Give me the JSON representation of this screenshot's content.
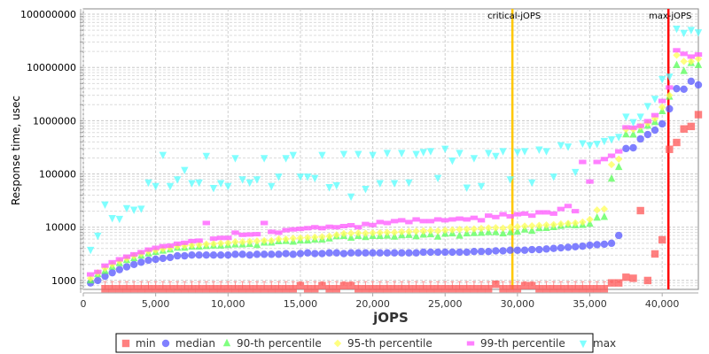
{
  "chart_data": {
    "type": "scatter",
    "title": "",
    "xlabel": "jOPS",
    "ylabel": "Response time, usec",
    "xlim": [
      0,
      42500
    ],
    "ylim": [
      680,
      126000000
    ],
    "yscale": "log",
    "grid": true,
    "legend_position": "bottom",
    "x_ticks": [
      "0",
      "5,000",
      "10,000",
      "15,000",
      "20,000",
      "25,000",
      "30,000",
      "35,000",
      "40,000"
    ],
    "x_tick_values": [
      0,
      5000,
      10000,
      15000,
      20000,
      25000,
      30000,
      35000,
      40000
    ],
    "y_ticks": [
      "1000",
      "10000",
      "100000",
      "1000000",
      "10000000",
      "100000000"
    ],
    "y_tick_values": [
      1000,
      10000,
      100000,
      1000000,
      10000000,
      100000000
    ],
    "annotations": [
      {
        "label": "critical-jOPS",
        "x": 29650,
        "color": "#ffc800"
      },
      {
        "label": "max-jOPS",
        "x": 40430,
        "color": "#ff0000"
      }
    ],
    "x_start": 500,
    "x_step": 500,
    "series": [
      {
        "name": "min",
        "marker": "square",
        "color": "#ff5555",
        "values": [
          null,
          null,
          700,
          700,
          700,
          700,
          700,
          700,
          700,
          700,
          700,
          700,
          700,
          700,
          700,
          700,
          700,
          700,
          700,
          700,
          700,
          700,
          700,
          700,
          700,
          700,
          700,
          700,
          700,
          800,
          700,
          700,
          800,
          700,
          700,
          800,
          800,
          700,
          700,
          700,
          700,
          700,
          700,
          700,
          700,
          700,
          700,
          700,
          700,
          700,
          700,
          700,
          700,
          700,
          700,
          700,
          850,
          700,
          700,
          700,
          800,
          800,
          700,
          700,
          700,
          700,
          700,
          700,
          700,
          700,
          700,
          700,
          900,
          900,
          1150,
          1100,
          20500,
          1000,
          3150,
          5800,
          290000,
          390000,
          700000,
          780000,
          1300000
        ]
      },
      {
        "name": "median",
        "marker": "circle",
        "color": "#5555ff",
        "values": [
          900,
          1000,
          1200,
          1400,
          1600,
          1800,
          2000,
          2200,
          2400,
          2500,
          2600,
          2700,
          2900,
          2900,
          3000,
          3000,
          3000,
          3000,
          3000,
          3000,
          3100,
          3100,
          3000,
          3100,
          3100,
          3100,
          3100,
          3200,
          3100,
          3200,
          3300,
          3200,
          3200,
          3300,
          3300,
          3200,
          3300,
          3300,
          3300,
          3300,
          3300,
          3300,
          3300,
          3300,
          3300,
          3300,
          3400,
          3400,
          3400,
          3400,
          3400,
          3400,
          3400,
          3500,
          3500,
          3500,
          3600,
          3600,
          3700,
          3700,
          3700,
          3800,
          3800,
          3900,
          4000,
          4100,
          4200,
          4300,
          4400,
          4600,
          4700,
          4800,
          5000,
          7000,
          300000,
          310000,
          455000,
          550000,
          665000,
          870000,
          1670000,
          4000000,
          3900000,
          5500000,
          4700000
        ]
      },
      {
        "name": "90-th percentile",
        "marker": "triangle-up",
        "color": "#55ff55",
        "values": [
          1000,
          1300,
          1500,
          1800,
          2100,
          2400,
          2600,
          2900,
          3200,
          3400,
          3600,
          3800,
          4100,
          4100,
          4300,
          4300,
          4400,
          4500,
          4500,
          4600,
          4700,
          4700,
          4800,
          4600,
          5100,
          5100,
          5400,
          5500,
          5300,
          5600,
          5600,
          5800,
          5800,
          6100,
          6700,
          6800,
          6300,
          6800,
          6500,
          6800,
          6800,
          6900,
          6600,
          7000,
          7100,
          6700,
          7200,
          7300,
          6600,
          7500,
          7600,
          6900,
          7600,
          7700,
          7800,
          8000,
          8000,
          7600,
          8000,
          8200,
          9000,
          8500,
          9500,
          9600,
          10000,
          10500,
          11000,
          10800,
          11000,
          11500,
          15000,
          15500,
          81000,
          134000,
          550000,
          545000,
          665000,
          800000,
          940000,
          1500000,
          2800000,
          11000000,
          8500000,
          12000000,
          11000000
        ]
      },
      {
        "name": "95-th percentile",
        "marker": "diamond",
        "color": "#ffff55",
        "values": [
          1100,
          1400,
          1700,
          2000,
          2300,
          2600,
          2900,
          3200,
          3500,
          3700,
          3900,
          4100,
          4400,
          4500,
          4600,
          4700,
          4800,
          4900,
          5000,
          5100,
          5300,
          5300,
          5400,
          5500,
          5600,
          5600,
          6000,
          6000,
          6200,
          6300,
          6400,
          6500,
          6600,
          6800,
          7200,
          7600,
          7700,
          7800,
          7700,
          7800,
          7900,
          8000,
          8000,
          8200,
          8300,
          8400,
          8500,
          8600,
          8500,
          8800,
          8900,
          9100,
          9200,
          9300,
          9500,
          9700,
          9800,
          9600,
          10000,
          10200,
          10500,
          10600,
          10800,
          11000,
          11200,
          11500,
          11800,
          12000,
          12500,
          14000,
          21000,
          22000,
          150000,
          190000,
          690000,
          690000,
          780000,
          900000,
          1100000,
          1800000,
          3000000,
          17000000,
          13000000,
          13000000,
          14500000
        ]
      },
      {
        "name": "99-th percentile",
        "marker": "rect",
        "color": "#ff55ff",
        "values": [
          1300,
          1450,
          1900,
          2200,
          2500,
          2800,
          3100,
          3400,
          3800,
          4100,
          4400,
          4500,
          4900,
          5100,
          5500,
          5600,
          12000,
          6100,
          6300,
          6300,
          7900,
          7200,
          7300,
          7400,
          12000,
          8200,
          7900,
          8800,
          9100,
          9300,
          9600,
          10000,
          9600,
          10200,
          10000,
          10500,
          10900,
          10000,
          11500,
          11000,
          12500,
          12000,
          13000,
          13500,
          12500,
          14000,
          13000,
          13000,
          14000,
          13500,
          14000,
          14500,
          14000,
          15000,
          13500,
          16500,
          15500,
          17500,
          16000,
          17500,
          18000,
          16500,
          19000,
          19000,
          18000,
          22000,
          25000,
          20000,
          168000,
          72000,
          168000,
          190000,
          220000,
          265000,
          750000,
          740000,
          800000,
          980000,
          1270000,
          2350000,
          4200000,
          21000000,
          18000000,
          16000000,
          17500000
        ]
      },
      {
        "name": "max",
        "marker": "triangle-down",
        "color": "#55ffff",
        "values": [
          3800,
          7000,
          27000,
          15000,
          14500,
          23000,
          21500,
          22500,
          70000,
          60000,
          230000,
          60000,
          80000,
          120000,
          68000,
          70000,
          220000,
          55000,
          68000,
          60000,
          200000,
          80000,
          70000,
          80000,
          200000,
          60000,
          90000,
          200000,
          230000,
          90000,
          90000,
          85000,
          230000,
          57000,
          62000,
          240000,
          38000,
          240000,
          53000,
          230000,
          68000,
          250000,
          68000,
          250000,
          70000,
          240000,
          260000,
          270000,
          85000,
          300000,
          180000,
          250000,
          56000,
          200000,
          60000,
          250000,
          220000,
          270000,
          80000,
          260000,
          270000,
          70000,
          290000,
          270000,
          90000,
          350000,
          330000,
          110000,
          380000,
          350000,
          370000,
          420000,
          450000,
          500000,
          1200000,
          950000,
          1200000,
          1900000,
          2600000,
          6100000,
          6800000,
          54000000,
          45000000,
          51000000,
          46000000
        ]
      }
    ]
  }
}
